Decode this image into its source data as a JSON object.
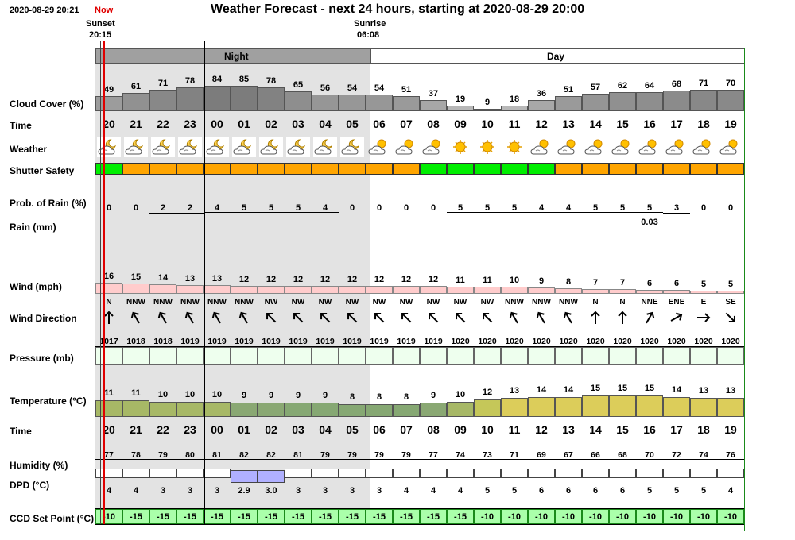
{
  "header": {
    "datetime": "2020-08-29 20:21",
    "now_label": "Now",
    "title": "Weather Forecast - next 24 hours, starting at 2020-08-29 20:00",
    "sunset_label": "Sunset",
    "sunset_time": "20:15",
    "sunrise_label": "Sunrise",
    "sunrise_time": "06:08",
    "night_label": "Night",
    "day_label": "Day"
  },
  "labels": {
    "cloud_cover": "Cloud Cover (%)",
    "time": "Time",
    "weather": "Weather",
    "shutter_safety": "Shutter Safety",
    "prob_rain": "Prob. of Rain (%)",
    "rain": "Rain (mm)",
    "wind": "Wind (mph)",
    "wind_direction": "Wind Direction",
    "pressure": "Pressure (mb)",
    "temperature": "Temperature (°C)",
    "time2": "Time",
    "humidity": "Humidity (%)",
    "dpd": "DPD (°C)",
    "ccd": "CCD Set Point (°C)"
  },
  "hours": [
    "20",
    "21",
    "22",
    "23",
    "00",
    "01",
    "02",
    "03",
    "04",
    "05",
    "06",
    "07",
    "08",
    "09",
    "10",
    "11",
    "12",
    "13",
    "14",
    "15",
    "16",
    "17",
    "18",
    "19"
  ],
  "cloud_cover": [
    49,
    61,
    71,
    78,
    84,
    85,
    78,
    65,
    56,
    54,
    54,
    51,
    37,
    19,
    9,
    18,
    36,
    51,
    57,
    62,
    64,
    68,
    71,
    70
  ],
  "weather_icons": [
    "partly-cloudy-night-icon",
    "partly-cloudy-night-icon",
    "partly-cloudy-night-icon",
    "partly-cloudy-night-icon",
    "partly-cloudy-night-icon",
    "partly-cloudy-night-icon",
    "partly-cloudy-night-icon",
    "partly-cloudy-night-icon",
    "partly-cloudy-night-icon",
    "partly-cloudy-night-icon",
    "partly-cloudy-day-icon",
    "partly-cloudy-day-icon",
    "partly-cloudy-day-icon",
    "sunny-icon",
    "sunny-icon",
    "sunny-icon",
    "partly-cloudy-day-icon",
    "partly-cloudy-day-icon",
    "partly-cloudy-day-icon",
    "partly-cloudy-day-icon",
    "partly-cloudy-day-icon",
    "partly-cloudy-day-icon",
    "partly-cloudy-day-icon",
    "partly-cloudy-day-icon"
  ],
  "shutter_safety": [
    "safe",
    "unsafe",
    "unsafe",
    "unsafe",
    "unsafe",
    "unsafe",
    "unsafe",
    "unsafe",
    "unsafe",
    "unsafe",
    "unsafe",
    "unsafe",
    "safe",
    "safe",
    "safe",
    "safe",
    "safe",
    "unsafe",
    "unsafe",
    "unsafe",
    "unsafe",
    "unsafe",
    "unsafe",
    "unsafe"
  ],
  "prob_rain": [
    0,
    0,
    2,
    2,
    4,
    5,
    5,
    5,
    4,
    0,
    0,
    0,
    0,
    5,
    5,
    5,
    4,
    4,
    5,
    5,
    5,
    3,
    0,
    0
  ],
  "rain_mm": [
    "",
    "",
    "",
    "",
    "",
    "",
    "",
    "",
    "",
    "",
    "",
    "",
    "",
    "",
    "",
    "",
    "",
    "",
    "",
    "",
    "0.03",
    "",
    "",
    ""
  ],
  "wind_mph": [
    16,
    15,
    14,
    13,
    13,
    12,
    12,
    12,
    12,
    12,
    12,
    12,
    12,
    11,
    11,
    10,
    9,
    8,
    7,
    7,
    6,
    6,
    5,
    5
  ],
  "wind_dir": [
    "N",
    "NNW",
    "NNW",
    "NNW",
    "NNW",
    "NNW",
    "NW",
    "NW",
    "NW",
    "NW",
    "NW",
    "NW",
    "NW",
    "NW",
    "NW",
    "NNW",
    "NNW",
    "NNW",
    "N",
    "N",
    "NNE",
    "ENE",
    "E",
    "SE"
  ],
  "wind_arrow_deg": [
    180,
    150,
    150,
    150,
    150,
    150,
    135,
    135,
    135,
    135,
    135,
    135,
    135,
    135,
    135,
    150,
    150,
    150,
    180,
    180,
    210,
    240,
    270,
    315
  ],
  "pressure": [
    1017,
    1018,
    1018,
    1019,
    1019,
    1019,
    1019,
    1019,
    1019,
    1019,
    1019,
    1019,
    1019,
    1020,
    1020,
    1020,
    1020,
    1020,
    1020,
    1020,
    1020,
    1020,
    1020,
    1020
  ],
  "temperature": [
    11,
    11,
    10,
    10,
    10,
    9,
    9,
    9,
    9,
    8,
    8,
    8,
    9,
    10,
    12,
    13,
    14,
    14,
    15,
    15,
    15,
    14,
    13,
    13
  ],
  "humidity": [
    77,
    78,
    79,
    80,
    81,
    82,
    82,
    81,
    79,
    79,
    79,
    79,
    77,
    74,
    73,
    71,
    69,
    67,
    66,
    68,
    70,
    72,
    74,
    76
  ],
  "dpd": [
    "4",
    "4",
    "3",
    "3",
    "3",
    "2.9",
    "3.0",
    "3",
    "3",
    "3",
    "3",
    "4",
    "4",
    "4",
    "5",
    "5",
    "6",
    "6",
    "6",
    "6",
    "5",
    "5",
    "5",
    "4"
  ],
  "ccd": [
    -10,
    -15,
    -15,
    -15,
    -15,
    -15,
    -15,
    -15,
    -15,
    -15,
    -15,
    -15,
    -15,
    -15,
    -10,
    -10,
    -10,
    -10,
    -10,
    -10,
    -10,
    -10,
    -10,
    -10
  ],
  "colors": {
    "now_red": "#e00000",
    "night_bg": "#e3e3e3",
    "night_header": "#a0a0a0",
    "safe": "#00ee00",
    "unsafe": "#ffa500",
    "wind_bar": "#ffcccc",
    "pressure_bg": "#eeffee",
    "ccd_bg": "#aaffaa",
    "dpd_low": "#b0b0ff"
  }
}
